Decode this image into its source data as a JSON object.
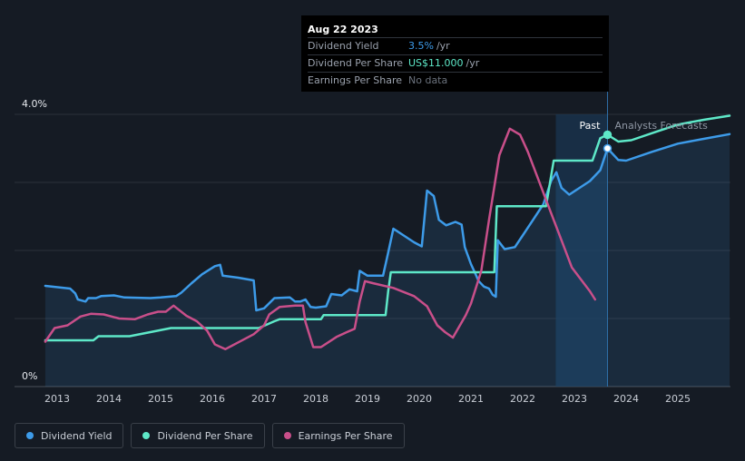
{
  "tooltip": {
    "date": "Aug 22 2023",
    "rows": [
      {
        "label": "Dividend Yield",
        "value": "3.5%",
        "unit": "/yr",
        "color": "#3d9be9"
      },
      {
        "label": "Dividend Per Share",
        "value": "US$11.000",
        "unit": "/yr",
        "color": "#5ee8c8"
      },
      {
        "label": "Earnings Per Share",
        "value": "No data",
        "unit": "",
        "color": "#6b727d"
      }
    ]
  },
  "labels": {
    "past": "Past",
    "forecast": "Analysts Forecasts"
  },
  "legend": [
    {
      "name": "Dividend Yield",
      "color": "#3d9be9"
    },
    {
      "name": "Dividend Per Share",
      "color": "#5ee8c8"
    },
    {
      "name": "Earnings Per Share",
      "color": "#c94f8a"
    }
  ],
  "chart_data": {
    "type": "line",
    "x_ticks": [
      "2013",
      "2014",
      "2015",
      "2016",
      "2017",
      "2018",
      "2019",
      "2020",
      "2021",
      "2022",
      "2023",
      "2024",
      "2025"
    ],
    "y_ticks": [
      "0%",
      "4.0%"
    ],
    "ylim": [
      0,
      4.0
    ],
    "grid": true,
    "past_end": 2023.64,
    "series": [
      {
        "name": "Dividend Yield",
        "color": "#3d9be9",
        "fill": true,
        "points": [
          [
            2012.77,
            1.48
          ],
          [
            2013.25,
            1.44
          ],
          [
            2013.35,
            1.37
          ],
          [
            2013.4,
            1.28
          ],
          [
            2013.55,
            1.25
          ],
          [
            2013.6,
            1.3
          ],
          [
            2013.75,
            1.3
          ],
          [
            2013.85,
            1.33
          ],
          [
            2014.1,
            1.34
          ],
          [
            2014.3,
            1.31
          ],
          [
            2014.8,
            1.3
          ],
          [
            2015.0,
            1.31
          ],
          [
            2015.3,
            1.33
          ],
          [
            2015.4,
            1.38
          ],
          [
            2015.6,
            1.52
          ],
          [
            2015.8,
            1.65
          ],
          [
            2016.05,
            1.77
          ],
          [
            2016.15,
            1.79
          ],
          [
            2016.2,
            1.63
          ],
          [
            2016.5,
            1.6
          ],
          [
            2016.8,
            1.56
          ],
          [
            2016.85,
            1.12
          ],
          [
            2017.0,
            1.15
          ],
          [
            2017.2,
            1.3
          ],
          [
            2017.5,
            1.31
          ],
          [
            2017.6,
            1.25
          ],
          [
            2017.7,
            1.25
          ],
          [
            2017.8,
            1.28
          ],
          [
            2017.9,
            1.17
          ],
          [
            2018.0,
            1.16
          ],
          [
            2018.2,
            1.18
          ],
          [
            2018.3,
            1.36
          ],
          [
            2018.5,
            1.34
          ],
          [
            2018.65,
            1.43
          ],
          [
            2018.8,
            1.4
          ],
          [
            2018.85,
            1.7
          ],
          [
            2019.0,
            1.63
          ],
          [
            2019.3,
            1.63
          ],
          [
            2019.4,
            1.97
          ],
          [
            2019.5,
            2.32
          ],
          [
            2019.7,
            2.22
          ],
          [
            2019.9,
            2.12
          ],
          [
            2020.05,
            2.06
          ],
          [
            2020.15,
            2.88
          ],
          [
            2020.28,
            2.8
          ],
          [
            2020.38,
            2.45
          ],
          [
            2020.52,
            2.37
          ],
          [
            2020.7,
            2.42
          ],
          [
            2020.82,
            2.38
          ],
          [
            2020.88,
            2.05
          ],
          [
            2021.0,
            1.8
          ],
          [
            2021.15,
            1.55
          ],
          [
            2021.25,
            1.47
          ],
          [
            2021.35,
            1.44
          ],
          [
            2021.42,
            1.35
          ],
          [
            2021.48,
            1.32
          ],
          [
            2021.52,
            2.15
          ],
          [
            2021.65,
            2.02
          ],
          [
            2021.85,
            2.05
          ],
          [
            2022.0,
            2.22
          ],
          [
            2022.2,
            2.45
          ],
          [
            2022.4,
            2.68
          ],
          [
            2022.55,
            3.02
          ],
          [
            2022.65,
            3.15
          ],
          [
            2022.75,
            2.92
          ],
          [
            2022.9,
            2.82
          ],
          [
            2023.1,
            2.92
          ],
          [
            2023.3,
            3.02
          ],
          [
            2023.5,
            3.18
          ],
          [
            2023.64,
            3.5
          ],
          [
            2023.85,
            3.33
          ],
          [
            2024.0,
            3.32
          ],
          [
            2024.5,
            3.45
          ],
          [
            2025.0,
            3.57
          ],
          [
            2025.5,
            3.64
          ],
          [
            2026.0,
            3.71
          ]
        ]
      },
      {
        "name": "Dividend Per Share",
        "color": "#5ee8c8",
        "fill": false,
        "points": [
          [
            2012.77,
            0.68
          ],
          [
            2013.7,
            0.68
          ],
          [
            2013.8,
            0.74
          ],
          [
            2014.4,
            0.74
          ],
          [
            2014.8,
            0.8
          ],
          [
            2015.2,
            0.86
          ],
          [
            2016.0,
            0.86
          ],
          [
            2016.9,
            0.86
          ],
          [
            2017.2,
            0.96
          ],
          [
            2017.3,
            0.99
          ],
          [
            2018.1,
            0.99
          ],
          [
            2018.15,
            1.05
          ],
          [
            2018.95,
            1.05
          ],
          [
            2019.05,
            1.05
          ],
          [
            2019.35,
            1.05
          ],
          [
            2019.4,
            1.4
          ],
          [
            2019.45,
            1.68
          ],
          [
            2021.2,
            1.68
          ],
          [
            2021.45,
            1.68
          ],
          [
            2021.5,
            2.65
          ],
          [
            2022.45,
            2.65
          ],
          [
            2022.6,
            3.32
          ],
          [
            2023.35,
            3.32
          ],
          [
            2023.5,
            3.65
          ],
          [
            2023.64,
            3.7
          ],
          [
            2023.85,
            3.6
          ],
          [
            2024.1,
            3.62
          ],
          [
            2024.6,
            3.75
          ],
          [
            2025.0,
            3.85
          ],
          [
            2025.5,
            3.92
          ],
          [
            2026.0,
            3.98
          ]
        ]
      },
      {
        "name": "Earnings Per Share",
        "color": "#c94f8a",
        "fill": false,
        "points": [
          [
            2012.77,
            0.66
          ],
          [
            2012.95,
            0.86
          ],
          [
            2013.2,
            0.9
          ],
          [
            2013.45,
            1.03
          ],
          [
            2013.65,
            1.07
          ],
          [
            2013.9,
            1.06
          ],
          [
            2014.2,
            1.0
          ],
          [
            2014.5,
            0.99
          ],
          [
            2014.75,
            1.06
          ],
          [
            2014.95,
            1.1
          ],
          [
            2015.1,
            1.1
          ],
          [
            2015.25,
            1.19
          ],
          [
            2015.5,
            1.04
          ],
          [
            2015.7,
            0.96
          ],
          [
            2015.9,
            0.82
          ],
          [
            2016.05,
            0.62
          ],
          [
            2016.25,
            0.55
          ],
          [
            2016.5,
            0.65
          ],
          [
            2016.8,
            0.77
          ],
          [
            2017.0,
            0.9
          ],
          [
            2017.1,
            1.06
          ],
          [
            2017.3,
            1.17
          ],
          [
            2017.6,
            1.19
          ],
          [
            2017.75,
            1.19
          ],
          [
            2017.8,
            0.95
          ],
          [
            2017.95,
            0.58
          ],
          [
            2018.1,
            0.58
          ],
          [
            2018.4,
            0.73
          ],
          [
            2018.6,
            0.8
          ],
          [
            2018.75,
            0.85
          ],
          [
            2018.85,
            1.25
          ],
          [
            2018.95,
            1.55
          ],
          [
            2019.1,
            1.52
          ],
          [
            2019.5,
            1.45
          ],
          [
            2019.9,
            1.33
          ],
          [
            2020.15,
            1.18
          ],
          [
            2020.35,
            0.9
          ],
          [
            2020.5,
            0.8
          ],
          [
            2020.65,
            0.72
          ],
          [
            2020.9,
            1.05
          ],
          [
            2021.0,
            1.22
          ],
          [
            2021.2,
            1.7
          ],
          [
            2021.35,
            2.45
          ],
          [
            2021.55,
            3.4
          ],
          [
            2021.75,
            3.79
          ],
          [
            2021.95,
            3.7
          ],
          [
            2022.1,
            3.45
          ],
          [
            2022.3,
            3.05
          ],
          [
            2022.55,
            2.55
          ],
          [
            2022.75,
            2.15
          ],
          [
            2022.95,
            1.75
          ],
          [
            2023.1,
            1.6
          ],
          [
            2023.3,
            1.4
          ],
          [
            2023.4,
            1.28
          ]
        ]
      }
    ]
  }
}
